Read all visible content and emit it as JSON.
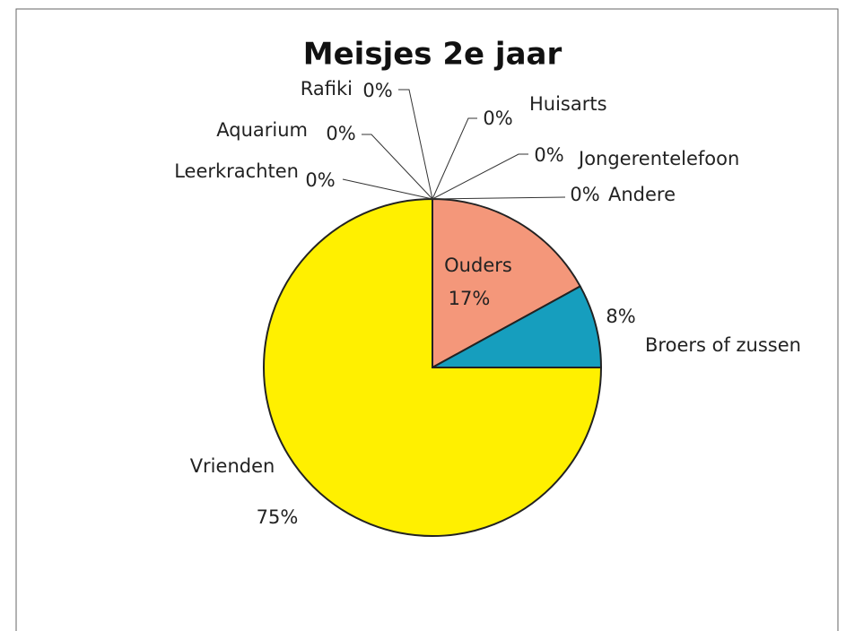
{
  "chart_data": {
    "type": "pie",
    "title": "Meisjes 2e jaar",
    "categories": [
      "Ouders",
      "Broers of zussen",
      "Vrienden",
      "Leerkrachten",
      "Aquarium",
      "Rafiki",
      "Huisarts",
      "Jongerentelefoon",
      "Andere"
    ],
    "values": [
      17,
      8,
      75,
      0,
      0,
      0,
      0,
      0,
      0
    ],
    "value_labels": [
      "17%",
      "8%",
      "75%",
      "0%",
      "0%",
      "0%",
      "0%",
      "0%",
      "0%"
    ],
    "colors": [
      "#f4977a",
      "#169ebe",
      "#fff000",
      "#9999ff",
      "#993366",
      "#ffffcc",
      "#ccffff",
      "#660066",
      "#ff8080"
    ]
  }
}
